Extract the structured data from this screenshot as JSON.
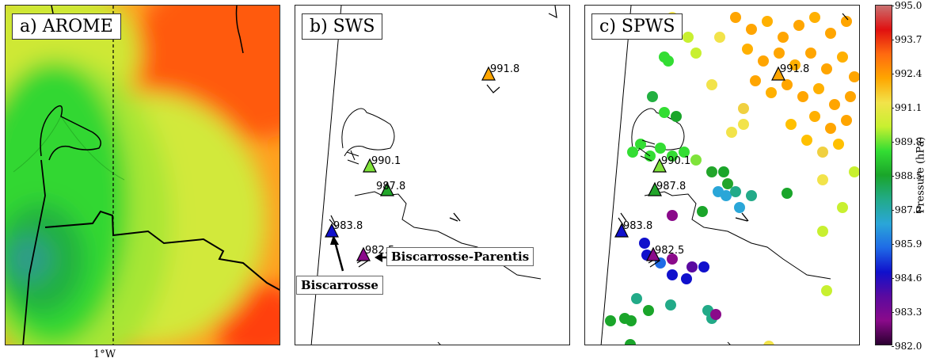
{
  "panels": {
    "a": {
      "title": "a) AROME",
      "lon_label": "1°W"
    },
    "b": {
      "title": "b) SWS"
    },
    "c": {
      "title": "c) SPWS"
    }
  },
  "stations": [
    {
      "label": "991.8",
      "value": 991.8
    },
    {
      "label": "990.1",
      "value": 990.1
    },
    {
      "label": "987.8",
      "value": 987.8
    },
    {
      "label": "983.8",
      "value": 983.8
    },
    {
      "label": "982.5",
      "value": 982.5
    }
  ],
  "callouts": {
    "biscarrosse": "Biscarrosse",
    "parentis": "Biscarrosse-Parentis"
  },
  "colorbar": {
    "label": "Pressure (hPa)",
    "ticks": [
      "995.0",
      "993.7",
      "992.4",
      "991.1",
      "989.8",
      "988.5",
      "987.2",
      "985.9",
      "984.6",
      "983.3",
      "982.0"
    ],
    "colors": [
      "#c97070",
      "#e01010",
      "#ff6a10",
      "#ffa500",
      "#f2e34a",
      "#c8f030",
      "#33dd33",
      "#1aa52a",
      "#22aa88",
      "#2aa6d8",
      "#1f6be6",
      "#1010cc",
      "#5a0aa0",
      "#8a0a8a",
      "#2a0030"
    ]
  }
}
